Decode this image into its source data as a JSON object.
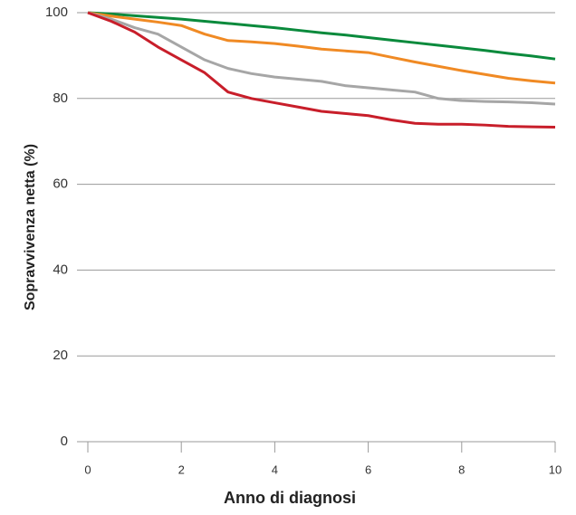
{
  "chart_data": {
    "type": "line",
    "x_label": "Anno di diagnosi",
    "y_label": "Sopravvivenza netta (%)",
    "x": [
      0,
      0.5,
      1,
      1.5,
      2,
      2.5,
      3,
      3.5,
      4,
      4.5,
      5,
      5.5,
      6,
      6.5,
      7,
      7.5,
      8,
      8.5,
      9,
      9.5,
      10
    ],
    "series": [
      {
        "color": "#0a8a3c",
        "values": [
          100,
          99.7,
          99.3,
          98.9,
          98.5,
          98,
          97.5,
          97,
          96.5,
          95.9,
          95.3,
          94.8,
          94.2,
          93.6,
          93,
          92.4,
          91.8,
          91.2,
          90.5,
          89.9,
          89.2
        ]
      },
      {
        "color": "#f08a24",
        "values": [
          100,
          99.2,
          98.5,
          97.8,
          97,
          95,
          93.5,
          93.2,
          92.8,
          92.2,
          91.5,
          91.1,
          90.7,
          89.6,
          88.5,
          87.5,
          86.5,
          85.6,
          84.7,
          84.1,
          83.6
        ]
      },
      {
        "color": "#a6a6a6",
        "values": [
          100,
          98.5,
          96.5,
          95,
          92,
          89,
          87,
          85.8,
          85,
          84.5,
          84,
          83,
          82.5,
          82,
          81.5,
          80,
          79.5,
          79.3,
          79.2,
          79,
          78.7
        ]
      },
      {
        "color": "#c81e2a",
        "values": [
          100,
          98,
          95.5,
          92,
          89,
          86,
          81.5,
          80,
          79,
          78,
          77,
          76.5,
          76,
          75,
          74.2,
          74,
          74,
          73.8,
          73.5,
          73.4,
          73.3
        ]
      }
    ],
    "xlim": [
      0,
      10
    ],
    "xticks": [
      0,
      2,
      4,
      6,
      8,
      10
    ],
    "ylim": [
      0,
      100
    ],
    "yticks": [
      0,
      20,
      40,
      60,
      80,
      100
    ],
    "grid": true
  }
}
